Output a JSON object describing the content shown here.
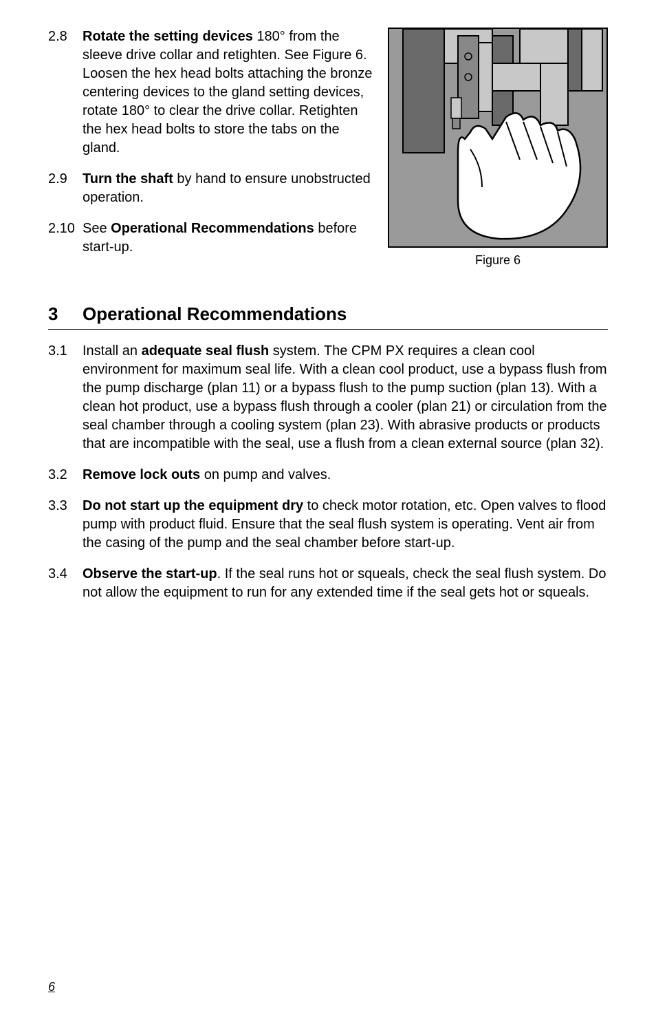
{
  "top_items": [
    {
      "num": "2.8",
      "html": "<b>Rotate the setting devices</b> 180° from the sleeve drive collar and retighten. See Figure 6. Loosen the hex head bolts attaching the bronze centering devices to the gland setting devices, rotate 180° to clear the drive collar. Retighten the hex head bolts to store the tabs on the gland."
    },
    {
      "num": "2.9",
      "html": "<b>Turn the shaft</b> by hand to ensure unobstructed operation."
    },
    {
      "num": "2.10",
      "html": "See <b>Operational Recommendations</b> before start-up."
    }
  ],
  "figure_caption": "Figure 6",
  "heading_num": "3",
  "heading_text": "Operational Recommendations",
  "section_items": [
    {
      "num": "3.1",
      "html": "Install an <b>adequate seal flush</b> system. The CPM PX requires a clean cool environment for maximum seal life. With a clean cool product, use a bypass flush from the pump discharge (plan 11) or a bypass flush to the pump suction (plan 13). With a clean hot product, use a bypass flush through a cooler (plan 21) or circulation from the seal chamber through a cooling system (plan 23). With abrasive products or products that are incompatible with the seal, use a flush from a clean external source (plan 32)."
    },
    {
      "num": "3.2",
      "html": "<b>Remove lock outs</b> on pump and valves."
    },
    {
      "num": "3.3",
      "html": "<b>Do not start up the equipment dry</b> to check motor rotation, etc. Open valves to flood pump with product fluid. Ensure that the seal flush system is operating. Vent air from the casing of the pump and the seal chamber before start-up."
    },
    {
      "num": "3.4",
      "html": "<b>Observe the start-up</b>. If the seal runs hot or squeals, check the seal flush system. Do not allow the equipment to run for any extended time if the seal gets hot or squeals."
    }
  ],
  "page_number": "6",
  "figure_svg_colors": {
    "bg": "#9a9a9a",
    "dark": "#6a6a6a",
    "mid": "#888888",
    "light": "#c8c8c8",
    "outline": "#000000",
    "hand_fill": "#ffffff"
  }
}
